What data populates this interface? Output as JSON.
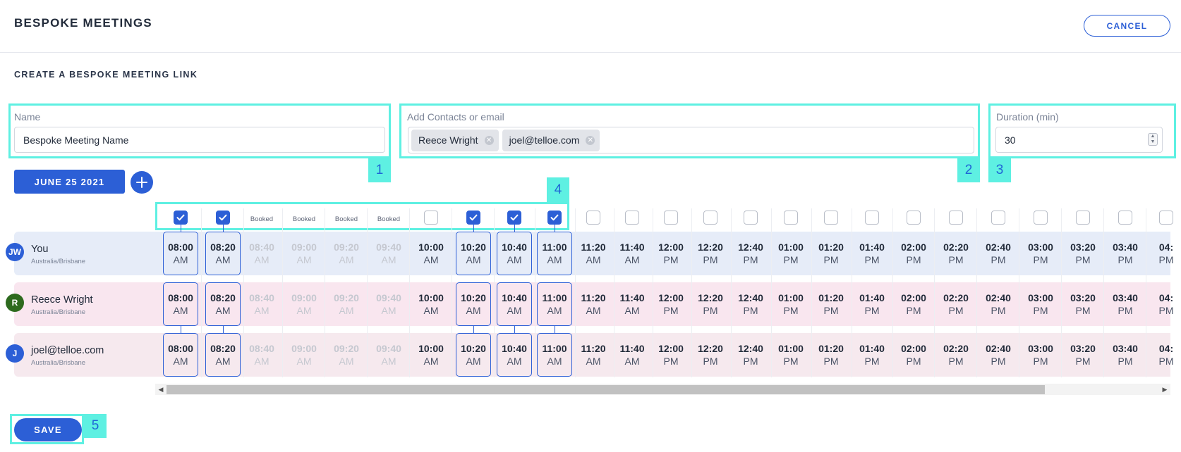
{
  "header": {
    "title": "BESPOKE MEETINGS",
    "cancel_label": "CANCEL"
  },
  "form": {
    "section_title": "CREATE A BESPOKE MEETING LINK",
    "name": {
      "label": "Name",
      "value": "Bespoke Meeting Name"
    },
    "contacts": {
      "label": "Add Contacts or email",
      "chips": [
        "Reece Wright",
        "joel@telloe.com"
      ]
    },
    "duration": {
      "label": "Duration (min)",
      "value": "30"
    },
    "date_label": "JUNE 25 2021",
    "save_label": "SAVE"
  },
  "annotations": [
    "1",
    "2",
    "3",
    "4",
    "5"
  ],
  "people": [
    {
      "initials": "JW",
      "name": "You",
      "tz": "Australia/Brisbane",
      "avatar_color": "#2c5fd6"
    },
    {
      "initials": "R",
      "name": "Reece Wright",
      "tz": "Australia/Brisbane",
      "avatar_color": "#2d6a1e"
    },
    {
      "initials": "J",
      "name": "joel@telloe.com",
      "tz": "Australia/Brisbane",
      "avatar_color": "#2c5fd6"
    }
  ],
  "booked_label": "Booked",
  "slots": [
    {
      "time": "08:00",
      "period": "AM",
      "status": "selected"
    },
    {
      "time": "08:20",
      "period": "AM",
      "status": "selected"
    },
    {
      "time": "08:40",
      "period": "AM",
      "status": "booked"
    },
    {
      "time": "09:00",
      "period": "AM",
      "status": "booked"
    },
    {
      "time": "09:20",
      "period": "AM",
      "status": "booked"
    },
    {
      "time": "09:40",
      "period": "AM",
      "status": "booked"
    },
    {
      "time": "10:00",
      "period": "AM",
      "status": "open"
    },
    {
      "time": "10:20",
      "period": "AM",
      "status": "selected"
    },
    {
      "time": "10:40",
      "period": "AM",
      "status": "selected"
    },
    {
      "time": "11:00",
      "period": "AM",
      "status": "selected"
    },
    {
      "time": "11:20",
      "period": "AM",
      "status": "open"
    },
    {
      "time": "11:40",
      "period": "AM",
      "status": "open"
    },
    {
      "time": "12:00",
      "period": "PM",
      "status": "open"
    },
    {
      "time": "12:20",
      "period": "PM",
      "status": "open"
    },
    {
      "time": "12:40",
      "period": "PM",
      "status": "open"
    },
    {
      "time": "01:00",
      "period": "PM",
      "status": "open"
    },
    {
      "time": "01:20",
      "period": "PM",
      "status": "open"
    },
    {
      "time": "01:40",
      "period": "PM",
      "status": "open"
    },
    {
      "time": "02:00",
      "period": "PM",
      "status": "open"
    },
    {
      "time": "02:20",
      "period": "PM",
      "status": "open"
    },
    {
      "time": "02:40",
      "period": "PM",
      "status": "open"
    },
    {
      "time": "03:00",
      "period": "PM",
      "status": "open"
    },
    {
      "time": "03:20",
      "period": "PM",
      "status": "open"
    },
    {
      "time": "03:40",
      "period": "PM",
      "status": "open"
    },
    {
      "time": "04:",
      "period": "PM",
      "status": "open"
    }
  ]
}
